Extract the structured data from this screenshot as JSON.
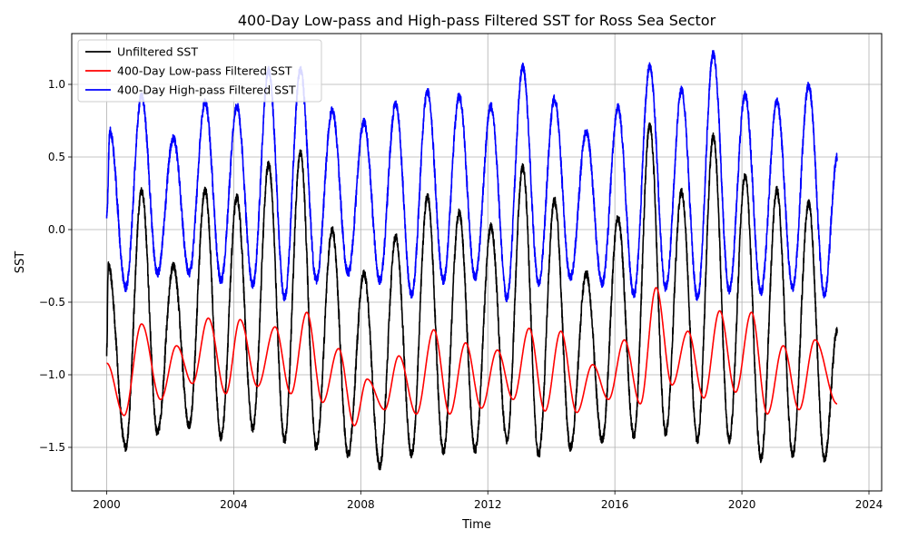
{
  "chart_data": {
    "type": "line",
    "title": "400-Day Low-pass and High-pass Filtered SST for Ross Sea Sector",
    "xlabel": "Time",
    "ylabel": "SST",
    "xlim": [
      1998.9,
      2024.4
    ],
    "ylim": [
      -1.8,
      1.35
    ],
    "x_ticks": [
      2000,
      2004,
      2008,
      2012,
      2016,
      2020,
      2024
    ],
    "x_tick_labels": [
      "2000",
      "2004",
      "2008",
      "2012",
      "2016",
      "2020",
      "2024"
    ],
    "y_ticks": [
      -1.5,
      -1.0,
      -0.5,
      0.0,
      0.5,
      1.0
    ],
    "y_tick_labels": [
      "−1.5",
      "−1.0",
      "−0.5",
      "0.0",
      "0.5",
      "1.0"
    ],
    "grid": true,
    "legend_position": "top-left",
    "x_range": [
      2000.0,
      2023.0
    ],
    "series": [
      {
        "name": "Unfiltered SST",
        "color": "#000000",
        "start_value": -0.85,
        "end_value": -0.7,
        "annual_peaks": [
          [
            2000.05,
            -0.25
          ],
          [
            2001.1,
            0.27
          ],
          [
            2002.1,
            -0.25
          ],
          [
            2003.1,
            0.27
          ],
          [
            2004.1,
            0.22
          ],
          [
            2005.1,
            0.45
          ],
          [
            2006.1,
            0.53
          ],
          [
            2007.1,
            0.0
          ],
          [
            2008.1,
            -0.3
          ],
          [
            2009.1,
            -0.05
          ],
          [
            2010.1,
            0.23
          ],
          [
            2011.1,
            0.12
          ],
          [
            2012.1,
            0.02
          ],
          [
            2013.1,
            0.43
          ],
          [
            2014.1,
            0.2
          ],
          [
            2015.1,
            -0.3
          ],
          [
            2016.1,
            0.08
          ],
          [
            2017.1,
            0.72
          ],
          [
            2018.1,
            0.26
          ],
          [
            2019.1,
            0.64
          ],
          [
            2020.1,
            0.37
          ],
          [
            2021.1,
            0.27
          ],
          [
            2022.1,
            0.18
          ]
        ],
        "annual_troughs": [
          [
            2000.6,
            -1.5
          ],
          [
            2001.6,
            -1.4
          ],
          [
            2002.6,
            -1.35
          ],
          [
            2003.6,
            -1.43
          ],
          [
            2004.6,
            -1.37
          ],
          [
            2005.6,
            -1.45
          ],
          [
            2006.6,
            -1.5
          ],
          [
            2007.6,
            -1.55
          ],
          [
            2008.6,
            -1.63
          ],
          [
            2009.6,
            -1.55
          ],
          [
            2010.6,
            -1.53
          ],
          [
            2011.6,
            -1.52
          ],
          [
            2012.6,
            -1.45
          ],
          [
            2013.6,
            -1.55
          ],
          [
            2014.6,
            -1.5
          ],
          [
            2015.6,
            -1.45
          ],
          [
            2016.6,
            -1.42
          ],
          [
            2017.6,
            -1.4
          ],
          [
            2018.6,
            -1.45
          ],
          [
            2019.6,
            -1.45
          ],
          [
            2020.6,
            -1.58
          ],
          [
            2021.6,
            -1.55
          ],
          [
            2022.6,
            -1.58
          ]
        ]
      },
      {
        "name": "400-Day Low-pass Filtered SST",
        "color": "#ff0000",
        "start_value": -0.92,
        "end_value": -1.2,
        "cycle_peaks": [
          [
            2001.1,
            -0.65
          ],
          [
            2002.2,
            -0.8
          ],
          [
            2003.2,
            -0.61
          ],
          [
            2004.2,
            -0.62
          ],
          [
            2005.3,
            -0.67
          ],
          [
            2006.3,
            -0.57
          ],
          [
            2007.3,
            -0.82
          ],
          [
            2008.2,
            -1.03
          ],
          [
            2009.2,
            -0.87
          ],
          [
            2010.3,
            -0.69
          ],
          [
            2011.3,
            -0.78
          ],
          [
            2012.3,
            -0.83
          ],
          [
            2013.3,
            -0.68
          ],
          [
            2014.3,
            -0.7
          ],
          [
            2015.3,
            -0.93
          ],
          [
            2016.3,
            -0.76
          ],
          [
            2017.3,
            -0.4
          ],
          [
            2018.3,
            -0.7
          ],
          [
            2019.3,
            -0.56
          ],
          [
            2020.3,
            -0.57
          ],
          [
            2021.3,
            -0.8
          ],
          [
            2022.3,
            -0.76
          ]
        ],
        "cycle_troughs": [
          [
            2000.55,
            -1.28
          ],
          [
            2001.7,
            -1.17
          ],
          [
            2002.7,
            -1.06
          ],
          [
            2003.75,
            -1.13
          ],
          [
            2004.75,
            -1.08
          ],
          [
            2005.8,
            -1.13
          ],
          [
            2006.8,
            -1.19
          ],
          [
            2007.8,
            -1.35
          ],
          [
            2008.75,
            -1.24
          ],
          [
            2009.75,
            -1.27
          ],
          [
            2010.8,
            -1.27
          ],
          [
            2011.8,
            -1.23
          ],
          [
            2012.8,
            -1.17
          ],
          [
            2013.8,
            -1.25
          ],
          [
            2014.8,
            -1.26
          ],
          [
            2015.8,
            -1.17
          ],
          [
            2016.8,
            -1.2
          ],
          [
            2017.8,
            -1.07
          ],
          [
            2018.8,
            -1.16
          ],
          [
            2019.8,
            -1.12
          ],
          [
            2020.8,
            -1.27
          ],
          [
            2021.8,
            -1.24
          ]
        ]
      },
      {
        "name": "400-Day High-pass Filtered SST",
        "color": "#0000ff",
        "start_value": 0.08,
        "end_value": 0.5,
        "annual_peaks": [
          [
            2000.1,
            0.68
          ],
          [
            2001.1,
            0.92
          ],
          [
            2002.1,
            0.63
          ],
          [
            2003.1,
            0.88
          ],
          [
            2004.1,
            0.85
          ],
          [
            2005.1,
            1.1
          ],
          [
            2006.1,
            1.1
          ],
          [
            2007.1,
            0.82
          ],
          [
            2008.1,
            0.74
          ],
          [
            2009.1,
            0.87
          ],
          [
            2010.1,
            0.95
          ],
          [
            2011.1,
            0.92
          ],
          [
            2012.1,
            0.85
          ],
          [
            2013.1,
            1.12
          ],
          [
            2014.1,
            0.9
          ],
          [
            2015.1,
            0.67
          ],
          [
            2016.1,
            0.84
          ],
          [
            2017.1,
            1.13
          ],
          [
            2018.1,
            0.96
          ],
          [
            2019.1,
            1.21
          ],
          [
            2020.1,
            0.93
          ],
          [
            2021.1,
            0.88
          ],
          [
            2022.1,
            0.99
          ]
        ],
        "annual_troughs": [
          [
            2000.6,
            -0.4
          ],
          [
            2001.6,
            -0.3
          ],
          [
            2002.6,
            -0.3
          ],
          [
            2003.6,
            -0.35
          ],
          [
            2004.6,
            -0.38
          ],
          [
            2005.6,
            -0.47
          ],
          [
            2006.6,
            -0.35
          ],
          [
            2007.6,
            -0.3
          ],
          [
            2008.6,
            -0.35
          ],
          [
            2009.6,
            -0.45
          ],
          [
            2010.6,
            -0.35
          ],
          [
            2011.6,
            -0.33
          ],
          [
            2012.6,
            -0.47
          ],
          [
            2013.6,
            -0.37
          ],
          [
            2014.6,
            -0.33
          ],
          [
            2015.6,
            -0.37
          ],
          [
            2016.6,
            -0.45
          ],
          [
            2017.6,
            -0.4
          ],
          [
            2018.6,
            -0.47
          ],
          [
            2019.6,
            -0.42
          ],
          [
            2020.6,
            -0.43
          ],
          [
            2021.6,
            -0.4
          ],
          [
            2022.6,
            -0.45
          ]
        ]
      }
    ]
  }
}
